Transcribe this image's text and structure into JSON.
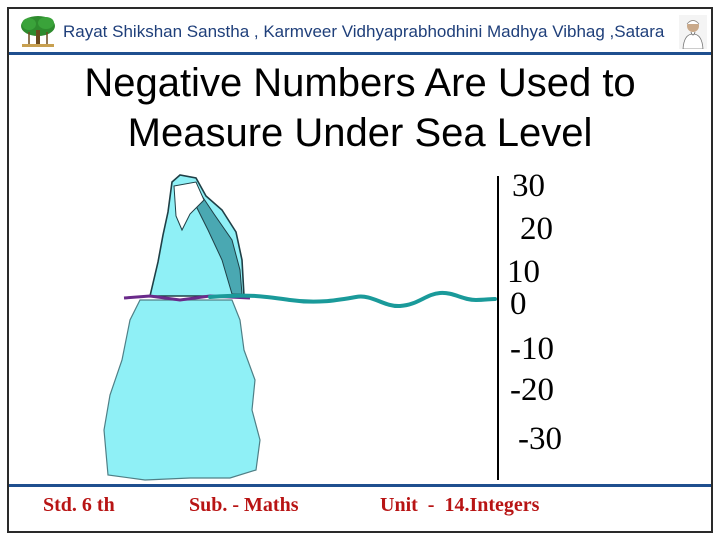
{
  "header": {
    "organization": "Rayat Shikshan Sanstha , Karmveer Vidhyaprabhodhini Madhya Vibhag ,Satara"
  },
  "slide": {
    "title_line1": "Negative Numbers Are Used to",
    "title_line2": "Measure Under Sea Level"
  },
  "scale": {
    "ticks": [
      "30",
      "20",
      "10",
      "0",
      "-10",
      "-20",
      "-30"
    ]
  },
  "footer": {
    "standard": "Std. 6 th",
    "subject": "Sub. - Maths",
    "unit": "Unit  -  14.Integers"
  },
  "colors": {
    "header_text": "#1f3f7a",
    "footer_text": "#b81414",
    "iceberg": "#8ff0f6",
    "water": "#1a9a9a"
  }
}
